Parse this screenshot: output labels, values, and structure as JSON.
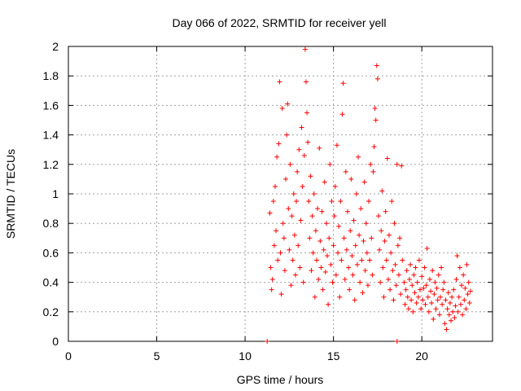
{
  "chart_data": {
    "type": "scatter",
    "title": "Day 066 of 2022, SRMTID for receiver yell",
    "xlabel": "GPS time / hours",
    "ylabel": "SRMTID / TECUs",
    "xlim": [
      0,
      24
    ],
    "ylim": [
      0,
      2
    ],
    "xticks": [
      0,
      5,
      10,
      15,
      20
    ],
    "yticks": [
      0,
      0.2,
      0.4,
      0.6,
      0.8,
      1,
      1.2,
      1.4,
      1.6,
      1.8,
      2
    ],
    "grid": true,
    "marker": "+",
    "series": [
      {
        "name": "SRMTID",
        "color": "#ff0000",
        "points": [
          [
            11.25,
            0.0
          ],
          [
            18.6,
            0.0
          ],
          [
            11.4,
            0.87
          ],
          [
            11.45,
            0.5
          ],
          [
            11.5,
            0.35
          ],
          [
            11.55,
            0.42
          ],
          [
            11.6,
            0.95
          ],
          [
            11.65,
            0.65
          ],
          [
            11.7,
            1.05
          ],
          [
            11.75,
            0.75
          ],
          [
            11.8,
            1.25
          ],
          [
            11.85,
            0.55
          ],
          [
            11.9,
            1.34
          ],
          [
            11.95,
            1.76
          ],
          [
            12.0,
            0.6
          ],
          [
            12.05,
            0.32
          ],
          [
            12.1,
            1.58
          ],
          [
            12.15,
            0.8
          ],
          [
            12.2,
            0.7
          ],
          [
            12.25,
            0.48
          ],
          [
            12.3,
            1.1
          ],
          [
            12.35,
            1.4
          ],
          [
            12.4,
            1.61
          ],
          [
            12.45,
            0.9
          ],
          [
            12.5,
            0.62
          ],
          [
            12.55,
            1.2
          ],
          [
            12.6,
            0.38
          ],
          [
            12.65,
            0.85
          ],
          [
            12.7,
            0.55
          ],
          [
            12.75,
            1.0
          ],
          [
            12.8,
            0.72
          ],
          [
            12.85,
            0.45
          ],
          [
            12.9,
            0.95
          ],
          [
            12.95,
            1.15
          ],
          [
            13.0,
            0.65
          ],
          [
            13.05,
            1.3
          ],
          [
            13.1,
            0.5
          ],
          [
            13.15,
            0.82
          ],
          [
            13.2,
            1.45
          ],
          [
            13.25,
            1.05
          ],
          [
            13.3,
            0.4
          ],
          [
            13.35,
            1.26
          ],
          [
            13.4,
            1.98
          ],
          [
            13.45,
            1.76
          ],
          [
            13.5,
            1.55
          ],
          [
            13.55,
            1.35
          ],
          [
            13.6,
            0.95
          ],
          [
            13.65,
            0.7
          ],
          [
            13.7,
            1.12
          ],
          [
            13.75,
            0.48
          ],
          [
            13.8,
            0.85
          ],
          [
            13.85,
            0.6
          ],
          [
            13.9,
            1.0
          ],
          [
            13.95,
            0.3
          ],
          [
            14.0,
            0.75
          ],
          [
            14.05,
            0.55
          ],
          [
            14.1,
            0.9
          ],
          [
            14.15,
            0.42
          ],
          [
            14.2,
            1.31
          ],
          [
            14.25,
            0.68
          ],
          [
            14.3,
            0.5
          ],
          [
            14.35,
            0.88
          ],
          [
            14.4,
            0.35
          ],
          [
            14.45,
            0.62
          ],
          [
            14.5,
            1.08
          ],
          [
            14.55,
            0.47
          ],
          [
            14.6,
            0.8
          ],
          [
            14.65,
            0.58
          ],
          [
            14.7,
            0.25
          ],
          [
            14.75,
            0.7
          ],
          [
            14.8,
            1.2
          ],
          [
            14.85,
            0.52
          ],
          [
            14.9,
            0.95
          ],
          [
            14.95,
            0.4
          ],
          [
            15.0,
            0.65
          ],
          [
            15.05,
            0.85
          ],
          [
            15.1,
            1.05
          ],
          [
            15.15,
            0.45
          ],
          [
            15.2,
            1.33
          ],
          [
            15.25,
            0.6
          ],
          [
            15.3,
            0.78
          ],
          [
            15.35,
            0.3
          ],
          [
            15.4,
            0.95
          ],
          [
            15.45,
            0.55
          ],
          [
            15.5,
            1.54
          ],
          [
            15.55,
            1.75
          ],
          [
            15.6,
            0.7
          ],
          [
            15.65,
            0.42
          ],
          [
            15.7,
            1.15
          ],
          [
            15.75,
            0.62
          ],
          [
            15.8,
            0.88
          ],
          [
            15.85,
            0.5
          ],
          [
            15.9,
            0.35
          ],
          [
            15.95,
            0.75
          ],
          [
            16.0,
            1.1
          ],
          [
            16.05,
            0.58
          ],
          [
            16.1,
            0.45
          ],
          [
            16.15,
            0.82
          ],
          [
            16.2,
            0.28
          ],
          [
            16.25,
            0.65
          ],
          [
            16.3,
            1.0
          ],
          [
            16.35,
            0.52
          ],
          [
            16.4,
            1.25
          ],
          [
            16.45,
            0.72
          ],
          [
            16.5,
            0.4
          ],
          [
            16.55,
            0.9
          ],
          [
            16.6,
            0.55
          ],
          [
            16.65,
            0.33
          ],
          [
            16.7,
            0.68
          ],
          [
            16.75,
            1.08
          ],
          [
            16.8,
            0.48
          ],
          [
            16.85,
            0.8
          ],
          [
            16.9,
            0.6
          ],
          [
            16.95,
            0.38
          ],
          [
            17.0,
            0.95
          ],
          [
            17.05,
            0.55
          ],
          [
            17.1,
            1.2
          ],
          [
            17.15,
            0.7
          ],
          [
            17.2,
            0.45
          ],
          [
            17.25,
            1.15
          ],
          [
            17.3,
            1.32
          ],
          [
            17.35,
            1.58
          ],
          [
            17.4,
            1.5
          ],
          [
            17.45,
            1.87
          ],
          [
            17.5,
            1.78
          ],
          [
            17.55,
            0.85
          ],
          [
            17.6,
            0.62
          ],
          [
            17.65,
            0.4
          ],
          [
            17.7,
            0.75
          ],
          [
            17.75,
            1.02
          ],
          [
            17.8,
            0.5
          ],
          [
            17.85,
            0.3
          ],
          [
            17.9,
            0.68
          ],
          [
            17.95,
            0.88
          ],
          [
            18.0,
            0.55
          ],
          [
            18.05,
            1.24
          ],
          [
            18.1,
            0.42
          ],
          [
            18.15,
            0.72
          ],
          [
            18.2,
            0.35
          ],
          [
            18.25,
            0.6
          ],
          [
            18.3,
            0.95
          ],
          [
            18.35,
            0.48
          ],
          [
            18.4,
            0.28
          ],
          [
            18.45,
            0.8
          ],
          [
            18.5,
            0.52
          ],
          [
            18.55,
            0.38
          ],
          [
            18.6,
            1.2
          ],
          [
            18.65,
            0.65
          ],
          [
            18.7,
            0.45
          ],
          [
            18.75,
            0.7
          ],
          [
            18.8,
            0.32
          ],
          [
            18.85,
            1.19
          ],
          [
            18.9,
            0.55
          ],
          [
            19.0,
            0.4
          ],
          [
            19.05,
            0.25
          ],
          [
            19.1,
            0.35
          ],
          [
            19.15,
            0.48
          ],
          [
            19.2,
            0.3
          ],
          [
            19.25,
            0.22
          ],
          [
            19.3,
            0.42
          ],
          [
            19.35,
            0.52
          ],
          [
            19.4,
            0.28
          ],
          [
            19.45,
            0.38
          ],
          [
            19.5,
            0.2
          ],
          [
            19.55,
            0.45
          ],
          [
            19.6,
            0.33
          ],
          [
            19.65,
            0.5
          ],
          [
            19.7,
            0.26
          ],
          [
            19.75,
            0.4
          ],
          [
            19.8,
            0.3
          ],
          [
            19.85,
            0.55
          ],
          [
            19.9,
            0.35
          ],
          [
            19.95,
            0.22
          ],
          [
            20.0,
            0.44
          ],
          [
            20.05,
            0.28
          ],
          [
            20.1,
            0.36
          ],
          [
            20.15,
            0.5
          ],
          [
            20.2,
            0.25
          ],
          [
            20.25,
            0.38
          ],
          [
            20.3,
            0.63
          ],
          [
            20.35,
            0.3
          ],
          [
            20.4,
            0.2
          ],
          [
            20.45,
            0.42
          ],
          [
            20.5,
            0.34
          ],
          [
            20.55,
            0.26
          ],
          [
            20.6,
            0.48
          ],
          [
            20.65,
            0.15
          ],
          [
            20.7,
            0.32
          ],
          [
            20.75,
            0.4
          ],
          [
            20.8,
            0.22
          ],
          [
            20.85,
            0.36
          ],
          [
            20.9,
            0.28
          ],
          [
            20.95,
            0.45
          ],
          [
            21.0,
            0.18
          ],
          [
            21.05,
            0.3
          ],
          [
            21.1,
            0.5
          ],
          [
            21.15,
            0.25
          ],
          [
            21.2,
            0.35
          ],
          [
            21.25,
            0.4
          ],
          [
            21.3,
            0.12
          ],
          [
            21.35,
            0.28
          ],
          [
            21.4,
            0.08
          ],
          [
            21.45,
            0.22
          ],
          [
            21.5,
            0.33
          ],
          [
            21.55,
            0.18
          ],
          [
            21.6,
            0.26
          ],
          [
            21.65,
            0.14
          ],
          [
            21.7,
            0.3
          ],
          [
            21.75,
            0.2
          ],
          [
            21.8,
            0.35
          ],
          [
            21.85,
            0.16
          ],
          [
            21.9,
            0.24
          ],
          [
            21.95,
            0.42
          ],
          [
            22.0,
            0.58
          ],
          [
            22.05,
            0.2
          ],
          [
            22.1,
            0.3
          ],
          [
            22.15,
            0.5
          ],
          [
            22.2,
            0.25
          ],
          [
            22.25,
            0.38
          ],
          [
            22.3,
            0.18
          ],
          [
            22.35,
            0.45
          ],
          [
            22.4,
            0.28
          ],
          [
            22.45,
            0.36
          ],
          [
            22.5,
            0.22
          ],
          [
            22.55,
            0.52
          ],
          [
            22.6,
            0.32
          ],
          [
            22.65,
            0.4
          ],
          [
            22.7,
            0.26
          ],
          [
            22.75,
            0.34
          ]
        ]
      }
    ]
  }
}
